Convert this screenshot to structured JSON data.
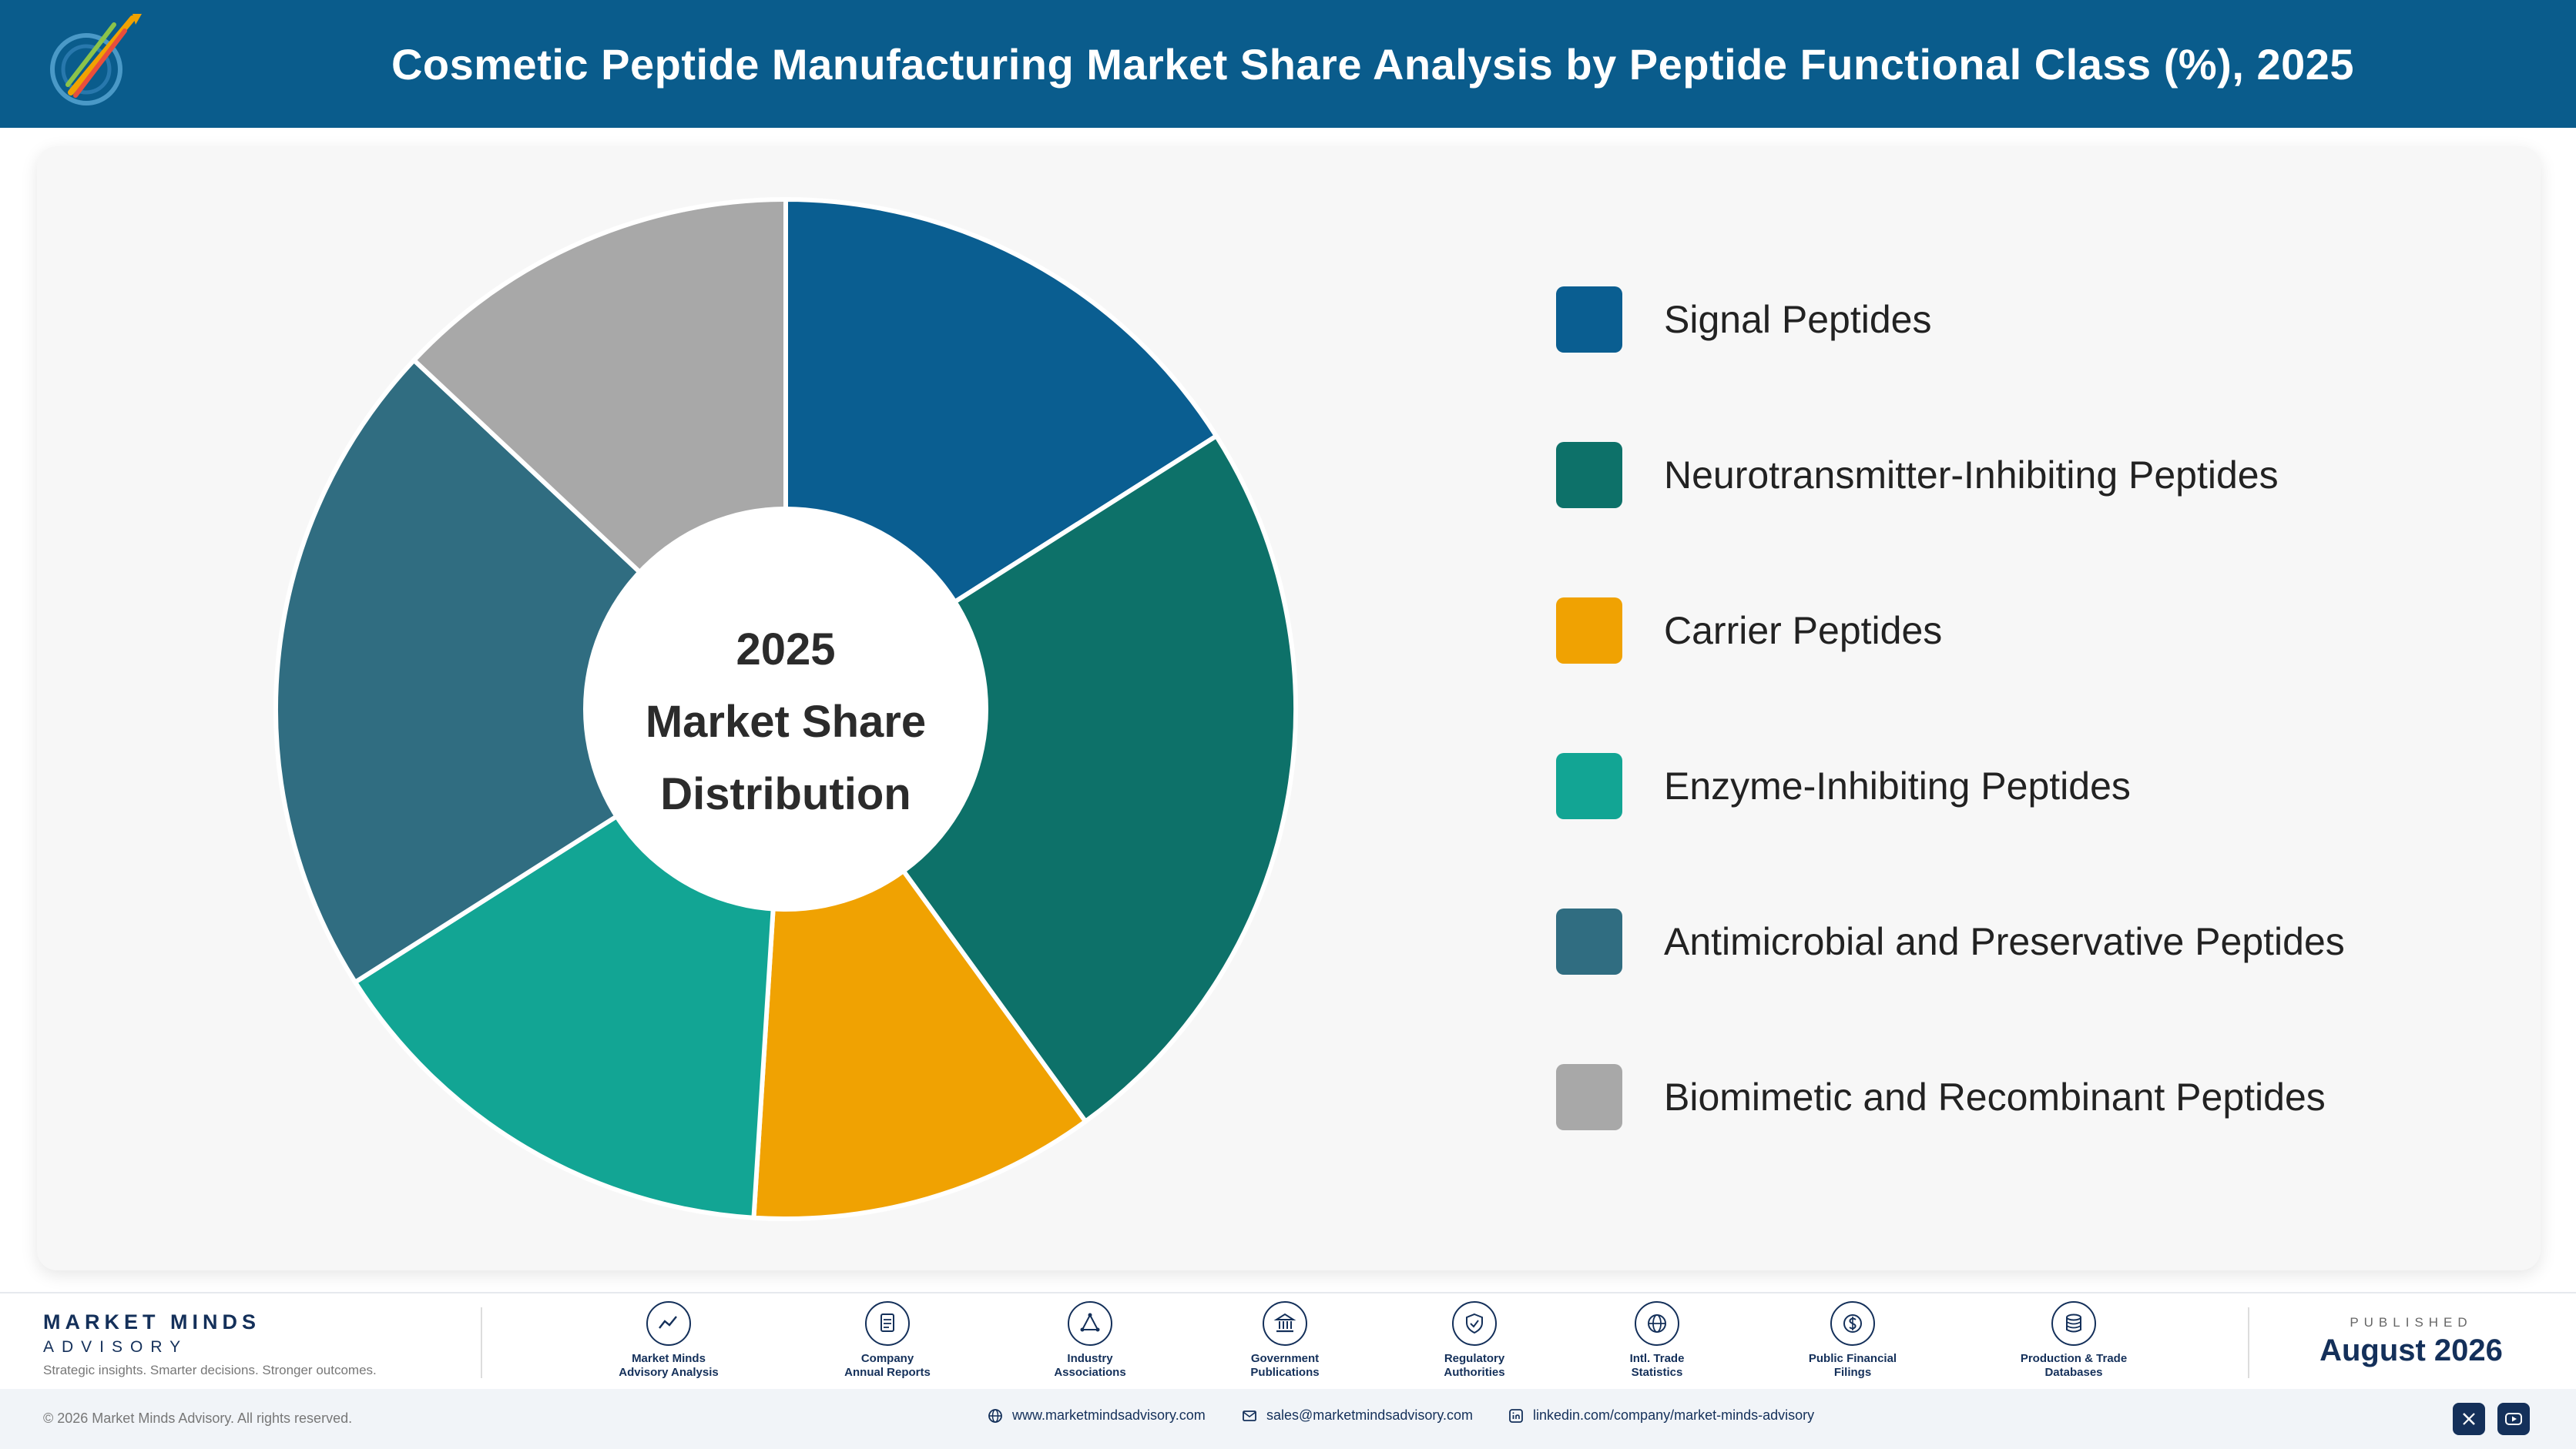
{
  "header": {
    "title": "Cosmetic Peptide Manufacturing Market Share Analysis by Peptide Functional Class (%), 2025"
  },
  "chart_data": {
    "type": "pie",
    "donut": true,
    "center_label": [
      "2025",
      "Market Share",
      "Distribution"
    ],
    "legend_position": "right",
    "categories": [
      "Signal Peptides",
      "Neurotransmitter-Inhibiting Peptides",
      "Carrier Peptides",
      "Enzyme-Inhibiting Peptides",
      "Antimicrobial and Preservative Peptides",
      "Biomimetic and Recombinant Peptides"
    ],
    "values": [
      16,
      24,
      11,
      15,
      21,
      13
    ],
    "colors": [
      "#0a5e91",
      "#0d7169",
      "#f0a202",
      "#12a594",
      "#306d81",
      "#a8a8a8"
    ]
  },
  "footer": {
    "brand_name": "MARKET MINDS",
    "brand_sub": "ADVISORY",
    "tagline": "Strategic insights. Smarter decisions. Stronger outcomes.",
    "sources": [
      {
        "icon": "chart-line-icon",
        "label": "Market Minds\nAdvisory Analysis"
      },
      {
        "icon": "document-icon",
        "label": "Company\nAnnual Reports"
      },
      {
        "icon": "network-icon",
        "label": "Industry\nAssociations"
      },
      {
        "icon": "government-building-icon",
        "label": "Government\nPublications"
      },
      {
        "icon": "shield-check-icon",
        "label": "Regulatory\nAuthorities"
      },
      {
        "icon": "globe-icon",
        "label": "Intl. Trade\nStatistics"
      },
      {
        "icon": "dollar-coin-icon",
        "label": "Public Financial\nFilings"
      },
      {
        "icon": "database-icon",
        "label": "Production & Trade\nDatabases"
      }
    ],
    "published_label": "PUBLISHED",
    "published_date": "August 2026"
  },
  "bottom_bar": {
    "copyright": "© 2026 Market Minds Advisory. All rights reserved.",
    "website": "www.marketmindsadvisory.com",
    "email": "sales@marketmindsadvisory.com",
    "linkedin": "linkedin.com/company/market-minds-advisory"
  }
}
